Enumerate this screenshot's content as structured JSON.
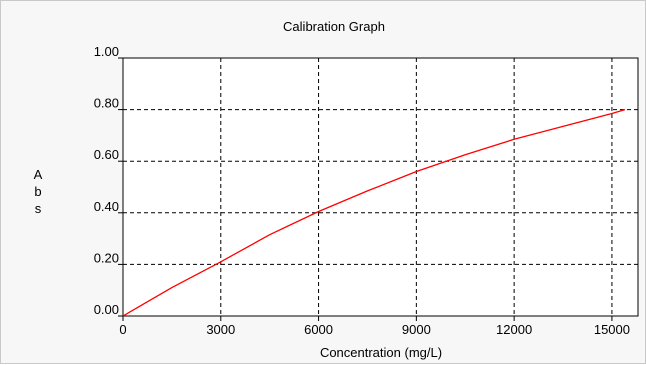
{
  "chart_data": {
    "type": "line",
    "title": "Calibration Graph",
    "xlabel": "Concentration (mg/L)",
    "ylabel": "Abs",
    "xlim": [
      0,
      15800
    ],
    "ylim": [
      0,
      1.0
    ],
    "x_ticks": [
      0,
      3000,
      6000,
      9000,
      12000,
      15000
    ],
    "x_tick_labels": [
      "0",
      "3000",
      "6000",
      "9000",
      "12000",
      "15000"
    ],
    "y_ticks": [
      0,
      0.2,
      0.4,
      0.6,
      0.8,
      1.0
    ],
    "y_tick_labels": [
      "0.00",
      "0.20",
      "0.40",
      "0.60",
      "0.80",
      "1.00"
    ],
    "grid": true,
    "grid_style": "dashed",
    "series": [
      {
        "color": "#ff0000",
        "x": [
          0,
          1500,
          3000,
          4500,
          6000,
          7500,
          9000,
          10500,
          12000,
          13500,
          15000,
          15400
        ],
        "y": [
          0.0,
          0.11,
          0.21,
          0.315,
          0.405,
          0.485,
          0.56,
          0.625,
          0.685,
          0.735,
          0.785,
          0.8
        ]
      }
    ]
  }
}
